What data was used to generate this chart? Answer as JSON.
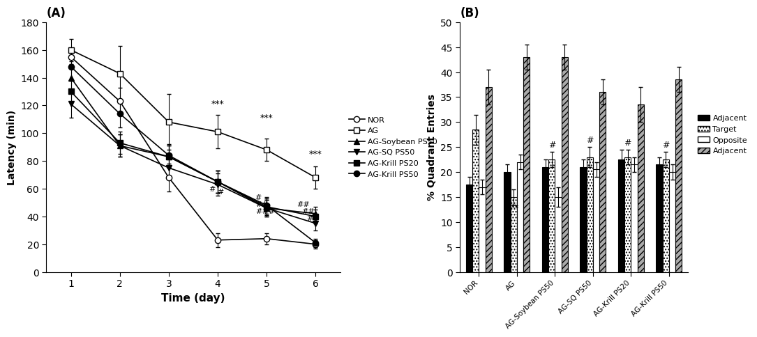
{
  "panel_A": {
    "title": "(A)",
    "xlabel": "Time (day)",
    "ylabel": "Latency (min)",
    "ylim": [
      0,
      180
    ],
    "yticks": [
      0,
      20,
      40,
      60,
      80,
      100,
      120,
      140,
      160,
      180
    ],
    "xticks": [
      1,
      2,
      3,
      4,
      5,
      6
    ],
    "days": [
      1,
      2,
      3,
      4,
      5,
      6
    ],
    "series": {
      "NOR": {
        "mean": [
          155,
          123,
          68,
          23,
          24,
          20
        ],
        "sem": [
          5,
          10,
          10,
          5,
          4,
          3
        ]
      },
      "AG": {
        "mean": [
          160,
          143,
          108,
          101,
          88,
          68
        ],
        "sem": [
          8,
          20,
          20,
          12,
          8,
          8
        ]
      },
      "AG-Soybean PS50": {
        "mean": [
          140,
          91,
          83,
          65,
          46,
          42
        ],
        "sem": [
          8,
          8,
          8,
          8,
          6,
          5
        ]
      },
      "AG-SQ PS50": {
        "mean": [
          121,
          91,
          75,
          63,
          46,
          35
        ],
        "sem": [
          10,
          8,
          8,
          8,
          6,
          5
        ]
      },
      "AG-Krill PS20": {
        "mean": [
          130,
          93,
          83,
          65,
          47,
          40
        ],
        "sem": [
          8,
          8,
          8,
          8,
          6,
          5
        ]
      },
      "AG-Krill PS50": {
        "mean": [
          148,
          114,
          84,
          65,
          48,
          21
        ],
        "sem": [
          10,
          10,
          8,
          8,
          6,
          3
        ]
      }
    }
  },
  "panel_B": {
    "title": "(B)",
    "ylabel": "% Quadrant Entries",
    "ylim": [
      0,
      50
    ],
    "yticks": [
      0,
      5,
      10,
      15,
      20,
      25,
      30,
      35,
      40,
      45,
      50
    ],
    "groups": [
      "NOR",
      "AG",
      "AG-Soybean PS50",
      "AG-SQ PS50",
      "AG-Krill PS20",
      "AG-Krill PS50"
    ],
    "data": {
      "NOR": {
        "adj1": [
          17.5,
          1.5
        ],
        "target": [
          28.5,
          3.0
        ],
        "opp": [
          17.0,
          1.5
        ],
        "adj2": [
          37.0,
          3.5
        ]
      },
      "AG": {
        "adj1": [
          20.0,
          1.5
        ],
        "target": [
          15.0,
          1.5
        ],
        "opp": [
          22.0,
          1.5
        ],
        "adj2": [
          43.0,
          2.5
        ]
      },
      "AG-Soybean PS50": {
        "adj1": [
          21.0,
          1.5
        ],
        "target": [
          22.5,
          1.5
        ],
        "opp": [
          15.0,
          2.0
        ],
        "adj2": [
          43.0,
          2.5
        ]
      },
      "AG-SQ PS50": {
        "adj1": [
          21.0,
          1.5
        ],
        "target": [
          23.0,
          2.0
        ],
        "opp": [
          20.5,
          1.5
        ],
        "adj2": [
          36.0,
          2.5
        ]
      },
      "AG-Krill PS20": {
        "adj1": [
          22.5,
          2.0
        ],
        "target": [
          23.0,
          1.5
        ],
        "opp": [
          21.5,
          1.5
        ],
        "adj2": [
          33.5,
          3.5
        ]
      },
      "AG-Krill PS50": {
        "adj1": [
          21.5,
          1.5
        ],
        "target": [
          22.5,
          1.5
        ],
        "opp": [
          20.0,
          1.5
        ],
        "adj2": [
          38.5,
          2.5
        ]
      }
    }
  }
}
